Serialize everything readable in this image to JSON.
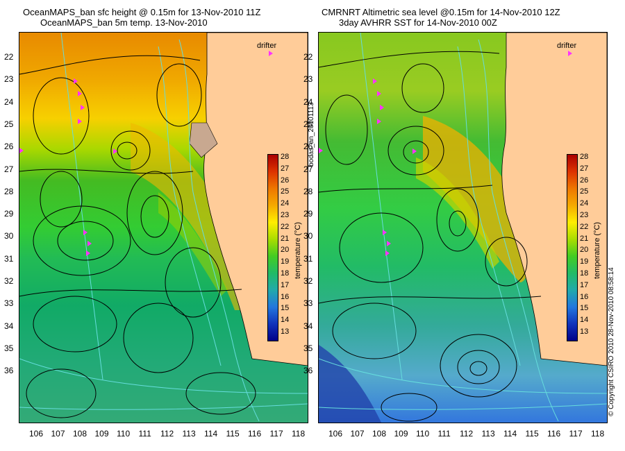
{
  "left_panel": {
    "title_line1": "OceanMAPS_ban sfc height @ 0.15m for 13-Nov-2010 11Z",
    "title_line2": "OceanMAPS_ban 5m temp. 13-Nov-2010"
  },
  "right_panel": {
    "title_line1": "CMRNRT Altimetric sea level  @0.15m  for 14-Nov-2010 12Z",
    "title_line2": "3day AVHRR SST for 14-Nov-2010 00Z"
  },
  "legend": {
    "drifter_label": "drifter",
    "drifter_color": "#ff33ff",
    "colorbar_label": "temperature (°C)",
    "colorbar_ticks": [
      "28",
      "27",
      "26",
      "25",
      "24",
      "23",
      "22",
      "21",
      "20",
      "19",
      "18",
      "17",
      "16",
      "15",
      "14",
      "13"
    ]
  },
  "axes": {
    "lat_ticks": [
      "22",
      "23",
      "24",
      "25",
      "26",
      "27",
      "28",
      "29",
      "30",
      "31",
      "32",
      "33",
      "34",
      "35",
      "36"
    ],
    "lon_ticks": [
      "106",
      "107",
      "108",
      "109",
      "110",
      "111",
      "112",
      "113",
      "114",
      "115",
      "116",
      "117",
      "118"
    ]
  },
  "side_texts": {
    "middle": "bodas_an_20101113",
    "right": "© Copyright CSIRO 2010   28-Nov-2010 08:58:14"
  },
  "colors": {
    "land": "#ffcc99",
    "contour": "#000000",
    "bathymetry": "#66dddd",
    "drifter": "#ff33ff"
  }
}
